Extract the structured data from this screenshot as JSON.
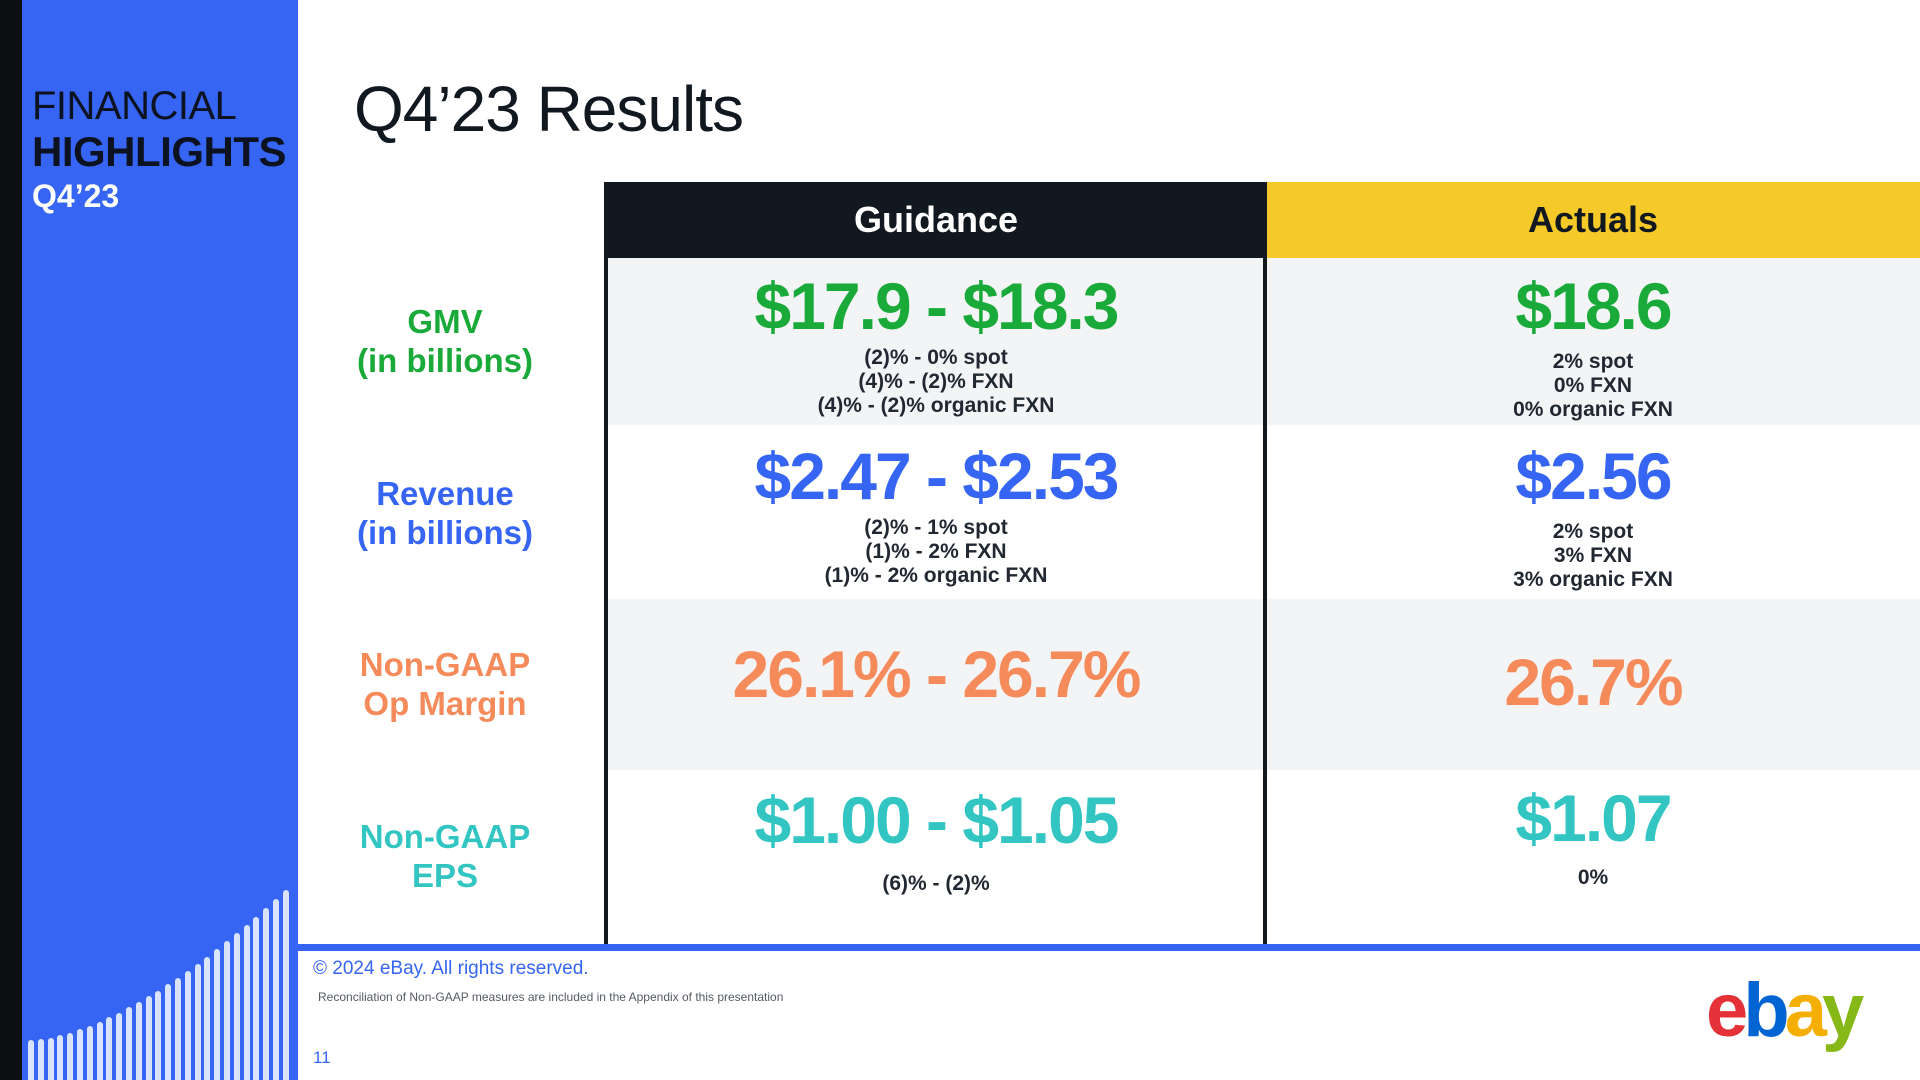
{
  "sidebar": {
    "line1": "FINANCIAL",
    "line2": "HIGHLIGHTS",
    "line3": "Q4’23"
  },
  "title": "Q4’23 Results",
  "table": {
    "headers": {
      "guidance": "Guidance",
      "actuals": "Actuals"
    },
    "rows": [
      {
        "label": [
          "GMV",
          "(in billions)"
        ],
        "guidance_big": "$17.9 - $18.3",
        "guidance_sub": [
          "(2)% - 0% spot",
          "(4)% - (2)% FXN",
          "(4)% - (2)% organic FXN"
        ],
        "actual_big": "$18.6",
        "actual_sub": [
          "2% spot",
          "0% FXN",
          "0% organic FXN"
        ]
      },
      {
        "label": [
          "Revenue",
          "(in billions)"
        ],
        "guidance_big": "$2.47 - $2.53",
        "guidance_sub": [
          "(2)% - 1% spot",
          "(1)% - 2% FXN",
          "(1)% - 2% organic FXN"
        ],
        "actual_big": "$2.56",
        "actual_sub": [
          "2% spot",
          "3% FXN",
          "3% organic FXN"
        ]
      },
      {
        "label": [
          "Non-GAAP",
          "Op Margin"
        ],
        "guidance_big": "26.1% - 26.7%",
        "actual_big": "26.7%"
      },
      {
        "label": [
          "Non-GAAP",
          "EPS"
        ],
        "guidance_big": "$1.00 - $1.05",
        "guidance_sub": [
          "(6)% - (2)%"
        ],
        "actual_big": "$1.07",
        "actual_sub": [
          "0%"
        ]
      }
    ]
  },
  "footer": {
    "copyright": "© 2024 eBay. All rights reserved.",
    "note": "Reconciliation of Non-GAAP measures are included in the Appendix of this presentation",
    "page": "11"
  },
  "logo": {
    "e": "e",
    "b": "b",
    "a": "a",
    "y": "y"
  },
  "colors": {
    "blue": "#3665f3",
    "green": "#1aaa3a",
    "orange": "#f58a5a",
    "teal": "#33c5c2",
    "yellow": "#f5c928",
    "dark": "#111820"
  }
}
